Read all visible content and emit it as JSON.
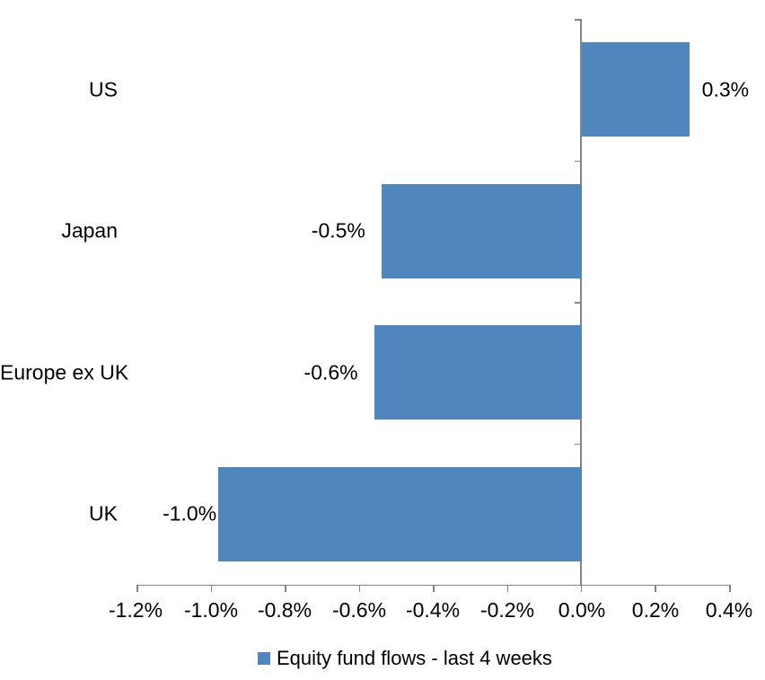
{
  "chart_data": {
    "type": "bar",
    "orientation": "horizontal",
    "title": "",
    "xlabel": "",
    "ylabel": "",
    "categories": [
      "US",
      "Japan",
      "Europe ex UK",
      "UK"
    ],
    "series": [
      {
        "name": "Equity fund flows - last 4 weeks",
        "values": [
          0.3,
          -0.5,
          -0.6,
          -1.0
        ]
      }
    ],
    "data_labels": [
      "0.3%",
      "-0.5%",
      "-0.6%",
      "-1.0%"
    ],
    "bar_value_estimates": [
      0.29,
      -0.54,
      -0.56,
      -0.98
    ],
    "x_tick_labels": [
      "-1.2%",
      "-1.0%",
      "-0.8%",
      "-0.6%",
      "-0.4%",
      "-0.2%",
      "0.0%",
      "0.2%",
      "0.4%"
    ],
    "xlim": [
      -1.2,
      0.4
    ],
    "x_unit": "percent",
    "grid": false,
    "legend": {
      "label": "Equity fund flows - last 4 weeks",
      "position": "bottom"
    },
    "colors": {
      "bar": "#4E86BD",
      "axis": "#848484",
      "text": "#000000",
      "background": "#FFFFFF"
    }
  }
}
